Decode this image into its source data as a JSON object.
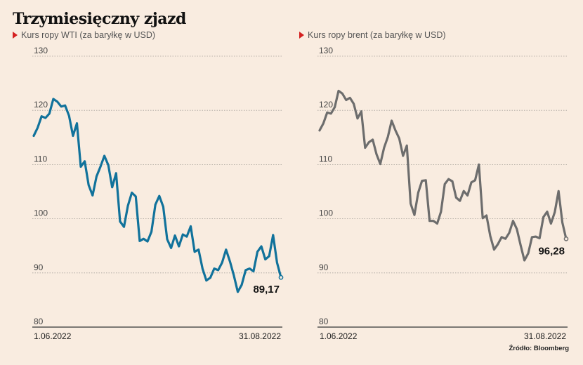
{
  "title": "Trzymiesięczny zjazd",
  "source": "Źródło: Bloomberg",
  "colors": {
    "wti": "#11729b",
    "brent": "#6d6d6d",
    "marker": "#d42020",
    "grid": "#a9a39c",
    "axis": "#333333"
  },
  "chart_data": [
    {
      "type": "line",
      "subtitle": "Kurs ropy WTI (za baryłkę w USD)",
      "ylim": [
        80,
        130
      ],
      "yticks": [
        "130",
        "120",
        "110",
        "100",
        "90",
        "80"
      ],
      "xticks": [
        "1.06.2022",
        "31.08.2022"
      ],
      "last_label": "89,17",
      "grid": true,
      "series": [
        {
          "values": [
            115.3,
            116.8,
            118.9,
            118.6,
            119.4,
            122.1,
            121.6,
            120.7,
            120.9,
            119.0,
            115.3,
            117.6,
            109.6,
            110.6,
            106.2,
            104.3,
            107.8,
            109.6,
            111.6,
            109.9,
            105.8,
            108.4,
            99.5,
            98.5,
            102.4,
            104.8,
            104.1,
            95.9,
            96.3,
            95.8,
            97.6,
            102.6,
            104.2,
            102.2,
            96.2,
            94.6,
            96.9,
            94.9,
            97.1,
            96.7,
            98.6,
            93.9,
            94.3,
            90.8,
            88.6,
            89.1,
            90.8,
            90.5,
            91.9,
            94.3,
            92.1,
            89.5,
            86.5,
            87.8,
            90.5,
            90.8,
            90.3,
            93.9,
            94.9,
            92.5,
            93.1,
            97.0,
            91.9,
            89.17
          ]
        }
      ]
    },
    {
      "type": "line",
      "subtitle": "Kurs ropy brent (za baryłkę w USD)",
      "ylim": [
        80,
        130
      ],
      "yticks": [
        "130",
        "120",
        "110",
        "100",
        "90",
        "80"
      ],
      "xticks": [
        "1.06.2022",
        "31.08.2022"
      ],
      "last_label": "96,28",
      "grid": true,
      "series": [
        {
          "values": [
            116.3,
            117.6,
            119.6,
            119.4,
            120.6,
            123.6,
            123.1,
            121.9,
            122.3,
            121.2,
            118.5,
            119.8,
            113.1,
            114.1,
            114.6,
            111.9,
            110.1,
            113.1,
            115.1,
            118.1,
            116.3,
            114.8,
            111.6,
            113.5,
            102.8,
            100.7,
            104.8,
            107.0,
            107.1,
            99.6,
            99.6,
            99.1,
            101.3,
            106.4,
            107.3,
            106.9,
            103.9,
            103.3,
            105.1,
            104.3,
            106.7,
            107.1,
            110.0,
            100.1,
            100.6,
            96.8,
            94.3,
            95.3,
            96.6,
            96.3,
            97.4,
            99.6,
            98.1,
            95.1,
            92.3,
            93.6,
            96.6,
            96.7,
            96.4,
            100.3,
            101.3,
            99.1,
            101.2,
            105.1,
            99.3,
            96.28
          ]
        }
      ]
    }
  ]
}
